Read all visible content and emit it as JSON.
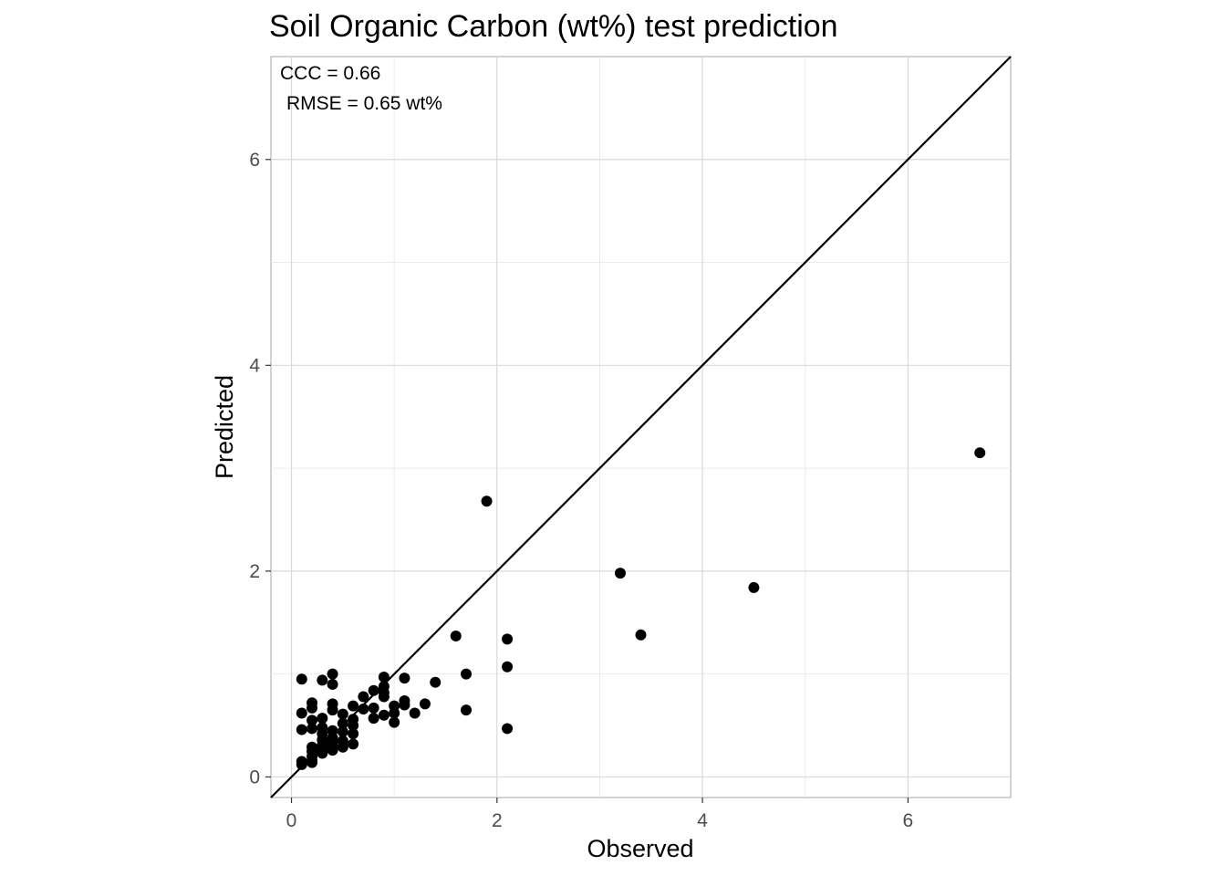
{
  "chart_data": {
    "type": "scatter",
    "title": "Soil Organic Carbon (wt%) test prediction",
    "xlabel": "Observed",
    "ylabel": "Predicted",
    "xlim": [
      -0.2,
      7.0
    ],
    "ylim": [
      -0.2,
      7.0
    ],
    "x_ticks": [
      0,
      2,
      4,
      6
    ],
    "y_ticks": [
      0,
      2,
      4,
      6
    ],
    "x_tick_labels": [
      "0",
      "2",
      "4",
      "6"
    ],
    "y_tick_labels": [
      "0",
      "2",
      "4",
      "6"
    ],
    "grid": true,
    "reference_line": "y = x",
    "annotations": [
      "CCC = 0.66",
      "RMSE = 0.65 wt%"
    ],
    "point_color": "#000000",
    "series": [
      {
        "x": [
          0.1,
          0.1,
          0.1,
          0.1,
          0.1,
          0.2,
          0.2,
          0.2,
          0.2,
          0.2,
          0.2,
          0.2,
          0.2,
          0.2,
          0.3,
          0.3,
          0.3,
          0.3,
          0.3,
          0.3,
          0.3,
          0.3,
          0.4,
          0.4,
          0.4,
          0.4,
          0.4,
          0.4,
          0.4,
          0.4,
          0.4,
          0.5,
          0.5,
          0.5,
          0.5,
          0.5,
          0.6,
          0.6,
          0.6,
          0.6,
          0.6,
          0.7,
          0.7,
          0.8,
          0.8,
          0.8,
          0.9,
          0.9,
          0.9,
          0.9,
          0.9,
          1.0,
          1.0,
          1.0,
          1.1,
          1.1,
          1.1,
          1.2,
          1.3,
          1.4,
          1.6,
          1.7,
          1.7,
          1.9,
          2.1,
          2.1,
          2.1,
          3.2,
          3.4,
          4.5,
          6.7
        ],
        "y": [
          0.95,
          0.62,
          0.46,
          0.15,
          0.12,
          0.72,
          0.67,
          0.55,
          0.47,
          0.29,
          0.25,
          0.2,
          0.16,
          0.14,
          0.94,
          0.57,
          0.48,
          0.42,
          0.36,
          0.31,
          0.27,
          0.23,
          1.0,
          0.9,
          0.71,
          0.65,
          0.45,
          0.38,
          0.34,
          0.3,
          0.26,
          0.61,
          0.52,
          0.44,
          0.35,
          0.29,
          0.69,
          0.56,
          0.5,
          0.42,
          0.32,
          0.78,
          0.66,
          0.84,
          0.67,
          0.57,
          0.97,
          0.88,
          0.82,
          0.78,
          0.6,
          0.69,
          0.62,
          0.53,
          0.96,
          0.74,
          0.7,
          0.62,
          0.71,
          0.92,
          1.37,
          1.0,
          0.65,
          2.68,
          1.34,
          1.07,
          0.47,
          1.98,
          1.38,
          1.84,
          3.15
        ]
      }
    ]
  }
}
